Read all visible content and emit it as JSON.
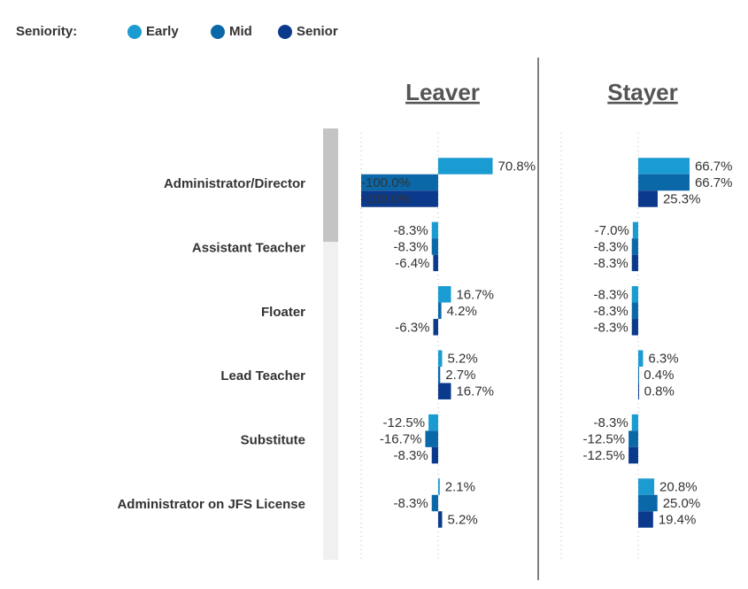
{
  "chart_data": {
    "type": "bar",
    "orientation": "horizontal",
    "legend_title": "Seniority:",
    "categories": [
      "Administrator/Director",
      "Assistant Teacher",
      "Floater",
      "Lead Teacher",
      "Substitute",
      "Administrator on JFS License"
    ],
    "series": [
      {
        "name": "Early",
        "color": "#1a9bd1"
      },
      {
        "name": "Mid",
        "color": "#0b68a8"
      },
      {
        "name": "Senior",
        "color": "#0b3a8c"
      }
    ],
    "xlim": [
      -100,
      130
    ],
    "xticks": [
      -100,
      0
    ],
    "grid": true,
    "panels": [
      {
        "title": "Leaver",
        "series": [
          {
            "values": [
              70.8,
              -8.3,
              16.7,
              5.2,
              -12.5,
              2.1
            ],
            "value_labels": [
              "70.8%",
              "-8.3%",
              "16.7%",
              "5.2%",
              "-12.5%",
              "2.1%"
            ]
          },
          {
            "values": [
              -100.0,
              -8.3,
              4.2,
              2.7,
              -16.7,
              -8.3
            ],
            "value_labels": [
              "-100.0%",
              "-8.3%",
              "4.2%",
              "2.7%",
              "-16.7%",
              "-8.3%"
            ]
          },
          {
            "values": [
              -100.0,
              -6.4,
              -6.3,
              16.7,
              -8.3,
              5.2
            ],
            "value_labels": [
              "-100.0%",
              "-6.4%",
              "-6.3%",
              "16.7%",
              "-8.3%",
              "5.2%"
            ]
          }
        ]
      },
      {
        "title": "Stayer",
        "series": [
          {
            "values": [
              66.7,
              -7.0,
              -8.3,
              6.3,
              -8.3,
              20.8
            ],
            "value_labels": [
              "66.7%",
              "-7.0%",
              "-8.3%",
              "6.3%",
              "-8.3%",
              "20.8%"
            ]
          },
          {
            "values": [
              66.7,
              -8.3,
              -8.3,
              0.4,
              -12.5,
              25.0
            ],
            "value_labels": [
              "66.7%",
              "-8.3%",
              "-8.3%",
              "0.4%",
              "-12.5%",
              "25.0%"
            ]
          },
          {
            "values": [
              25.3,
              -8.3,
              -8.3,
              0.8,
              -12.5,
              19.4
            ],
            "value_labels": [
              "25.3%",
              "-8.3%",
              "-8.3%",
              "0.8%",
              "-12.5%",
              "19.4%"
            ]
          }
        ]
      }
    ]
  }
}
